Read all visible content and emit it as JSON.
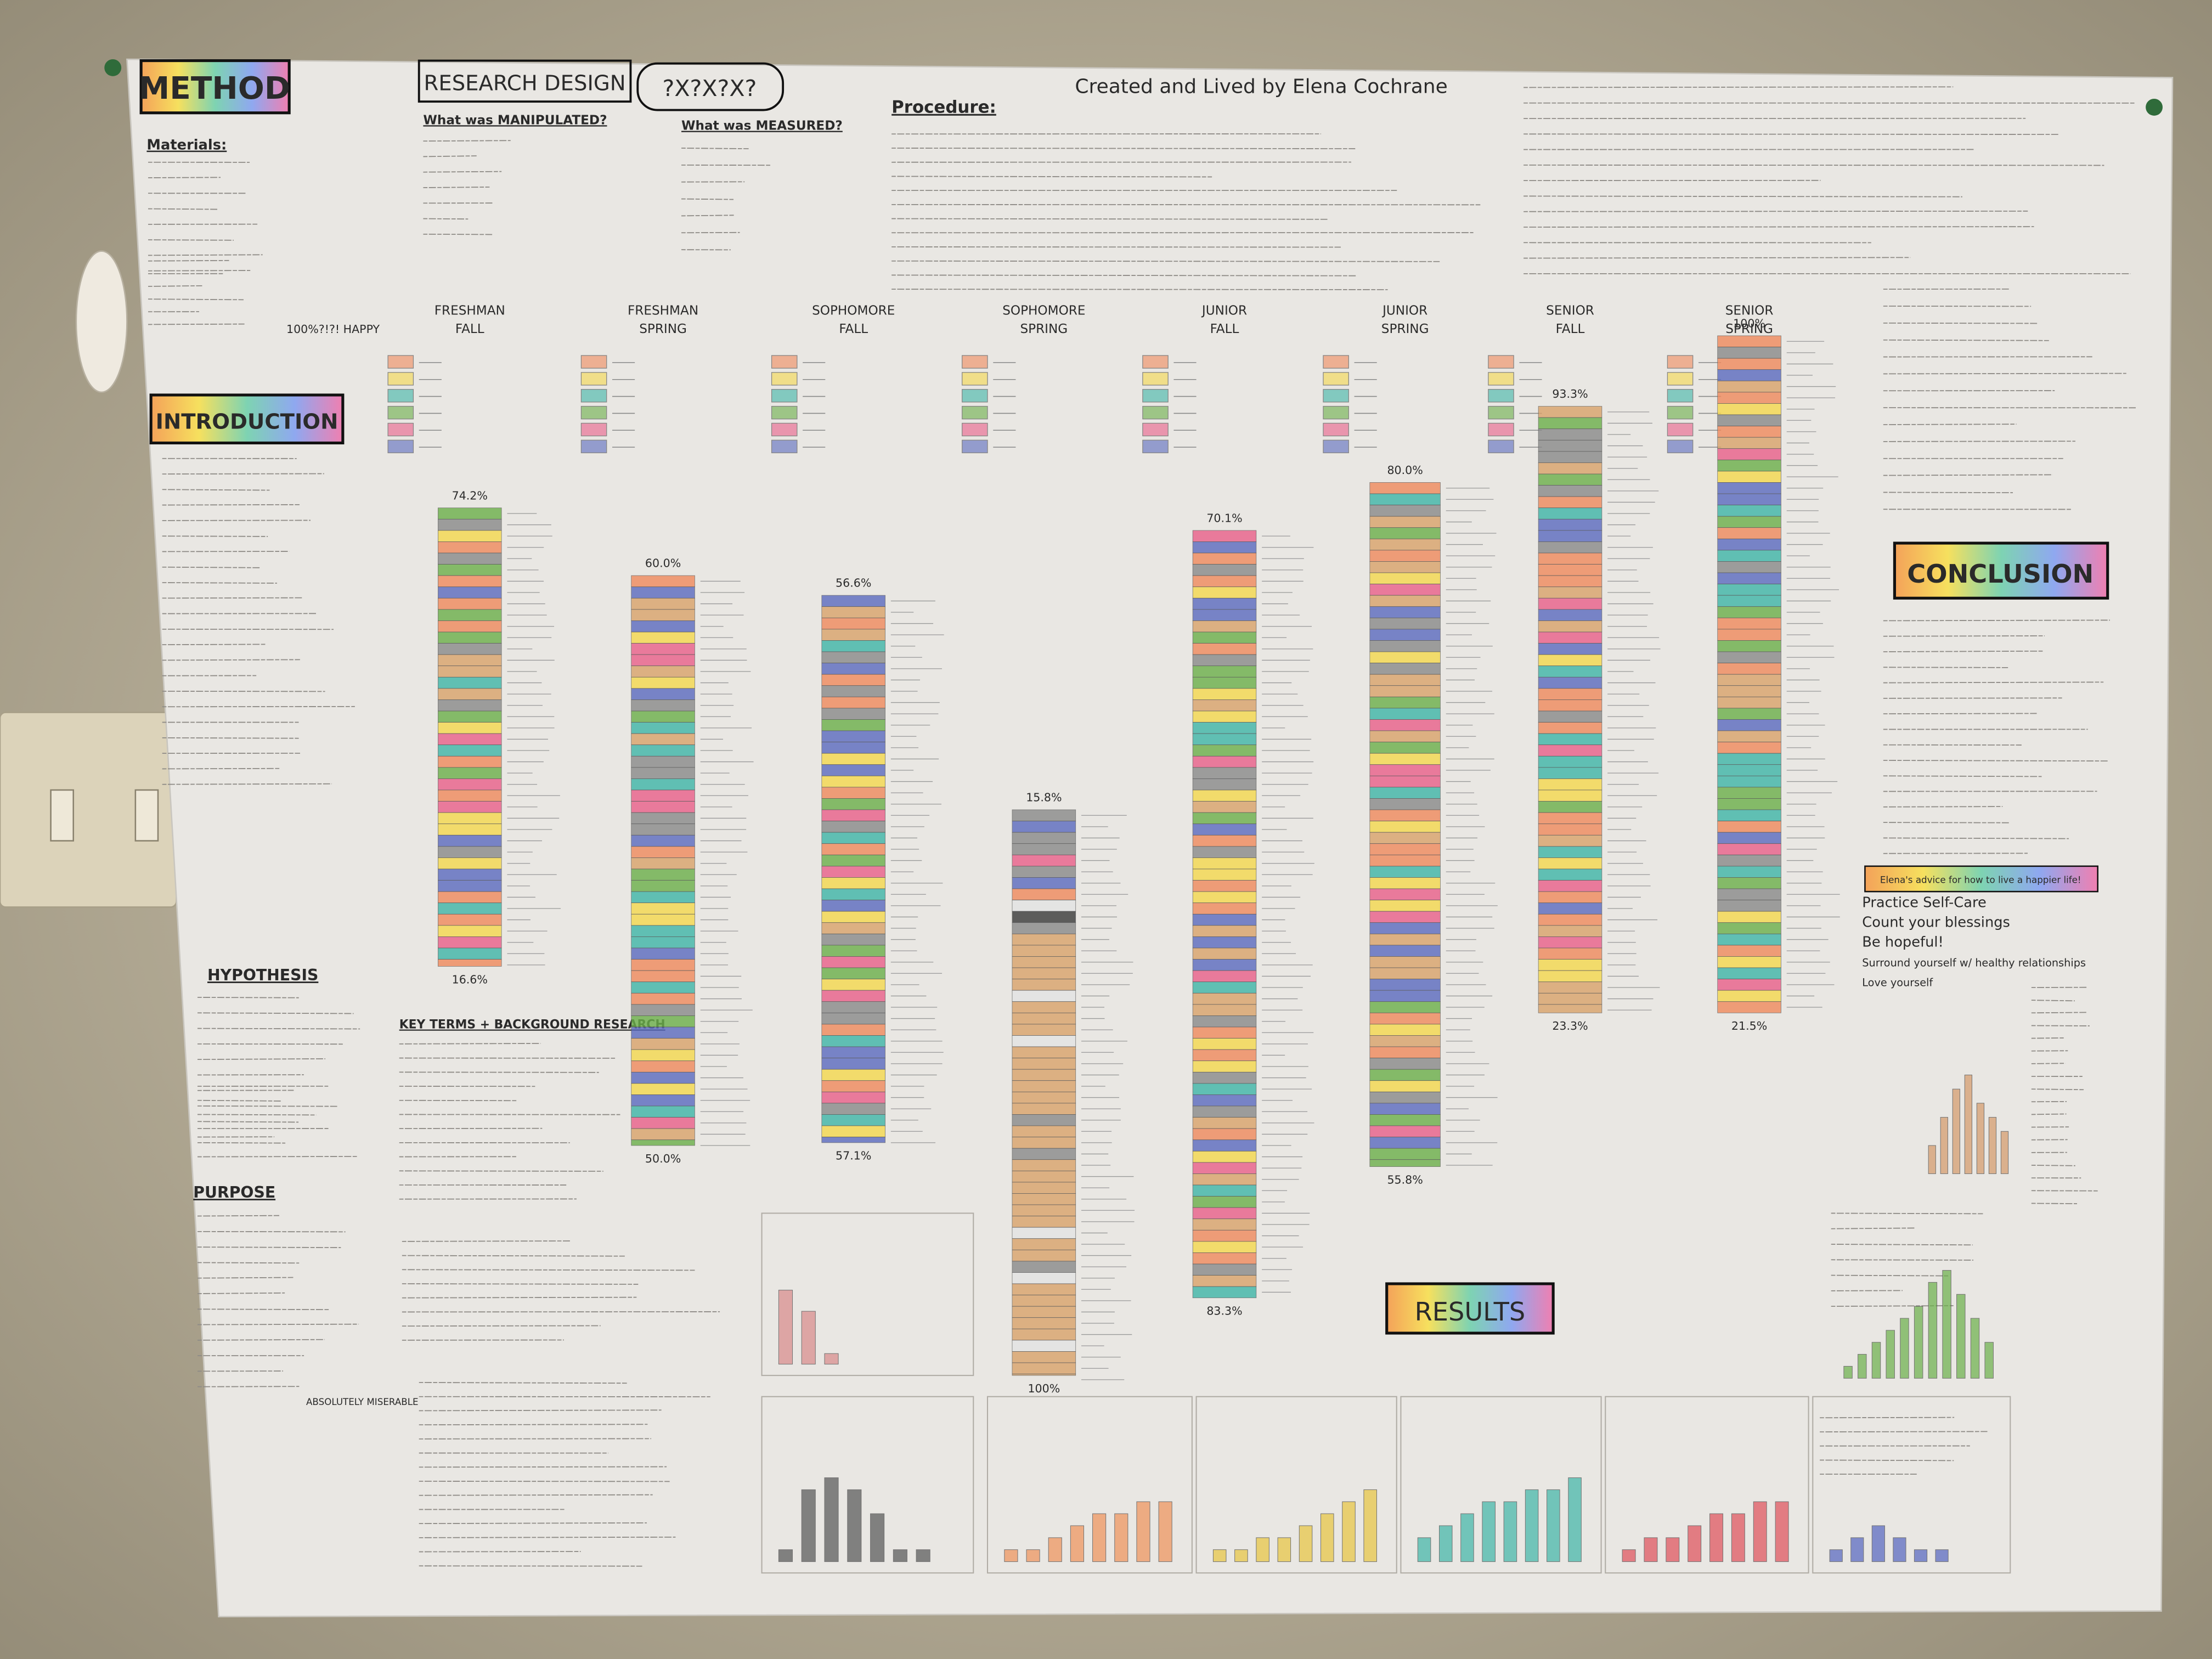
{
  "header": {
    "method": "METHOD",
    "research_design": "RESEARCH DESIGN",
    "question": "?X?X?X?",
    "credit": "Created and Lived by Elena Cochrane",
    "procedure": "Procedure:",
    "manipulated": "What was MANIPULATED?",
    "measured": "What was MEASURED?"
  },
  "sections": {
    "materials": "Materials:",
    "introduction": "INTRODUCTION",
    "hypothesis": "HYPOTHESIS",
    "purpose": "PURPOSE",
    "key_terms": "KEY TERMS + BACKGROUND RESEARCH",
    "results": "RESULTS",
    "conclusion": "CONCLUSION",
    "happy": "100%?!?! HAPPY",
    "miserable": "ABSOLUTELY MISERABLE"
  },
  "semesters": [
    {
      "year": "FRESHMAN",
      "term": "FALL",
      "top": "74.2%",
      "bottom": "16.6%"
    },
    {
      "year": "FRESHMAN",
      "term": "SPRING",
      "top": "60.0%",
      "bottom": "50.0%"
    },
    {
      "year": "SOPHOMORE",
      "term": "FALL",
      "top": "56.6%",
      "bottom": "57.1%"
    },
    {
      "year": "SOPHOMORE",
      "term": "SPRING",
      "top": "15.8%",
      "bottom": "100%"
    },
    {
      "year": "JUNIOR",
      "term": "FALL",
      "top": "70.1%",
      "bottom": "83.3%"
    },
    {
      "year": "JUNIOR",
      "term": "SPRING",
      "top": "80.0%",
      "bottom": "55.8%"
    },
    {
      "year": "SENIOR",
      "term": "FALL",
      "top": "93.3%",
      "bottom": "23.3%"
    },
    {
      "year": "SENIOR",
      "term": "SPRING",
      "top": "100%",
      "bottom": "21.5%"
    }
  ],
  "advice": {
    "title": "Elena's advice for how to live a happier life!",
    "items": [
      "Practice Self-Care",
      "Count your blessings",
      "Be hopeful!",
      "Surround yourself w/ healthy relationships",
      "Love yourself"
    ]
  },
  "results_panels": [
    {
      "color": "#d98a8a",
      "values": [
        7,
        5,
        1,
        0,
        0,
        0,
        0,
        0
      ]
    },
    {
      "color": "#555555",
      "values": [
        1,
        6,
        7,
        6,
        4,
        1,
        1,
        0
      ]
    },
    {
      "color": "#f0925a",
      "values": [
        1,
        1,
        2,
        3,
        4,
        4,
        5,
        5
      ]
    },
    {
      "color": "#e8c640",
      "values": [
        1,
        1,
        2,
        2,
        3,
        4,
        5,
        6
      ]
    },
    {
      "color": "#3fb6a8",
      "values": [
        2,
        3,
        4,
        5,
        5,
        6,
        6,
        7
      ]
    },
    {
      "color": "#e0505a",
      "values": [
        1,
        2,
        2,
        3,
        4,
        4,
        5,
        5
      ]
    },
    {
      "color": "#5565c0",
      "values": [
        1,
        2,
        3,
        2,
        1,
        1,
        0,
        0
      ]
    },
    {
      "color": "#d49a6a",
      "values": [
        2,
        4,
        6,
        7,
        5,
        4,
        3
      ]
    },
    {
      "color": "#6bb04a",
      "values": [
        1,
        2,
        3,
        4,
        5,
        6,
        8,
        9,
        7,
        5,
        3
      ]
    }
  ]
}
